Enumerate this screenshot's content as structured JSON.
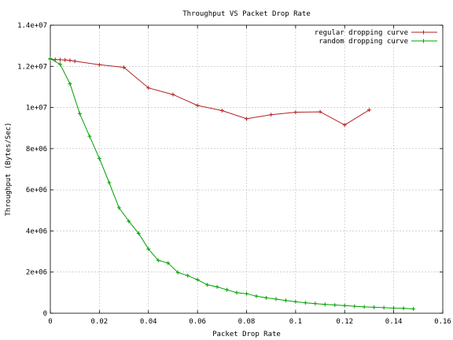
{
  "chart_data": {
    "type": "line",
    "title": "Throughput VS Packet Drop Rate",
    "xlabel": "Packet Drop Rate",
    "ylabel": "Throughput (Bytes/Sec)",
    "xlim": [
      0,
      0.16
    ],
    "ylim": [
      0,
      14000000
    ],
    "x_ticks": [
      0,
      0.02,
      0.04,
      0.06,
      0.08,
      0.1,
      0.12,
      0.14,
      0.16
    ],
    "x_tick_labels": [
      "0",
      "0.02",
      "0.04",
      "0.06",
      "0.08",
      "0.1",
      "0.12",
      "0.14",
      "0.16"
    ],
    "y_ticks": [
      0,
      2000000,
      4000000,
      6000000,
      8000000,
      10000000,
      12000000,
      14000000
    ],
    "y_tick_labels": [
      "0",
      "2e+06",
      "4e+06",
      "6e+06",
      "8e+06",
      "1e+07",
      "1.2e+07",
      "1.4e+07"
    ],
    "grid": true,
    "legend_position": "top-right",
    "series": [
      {
        "name": "regular dropping curve",
        "color": "#b22222",
        "points": [
          [
            0,
            12350000
          ],
          [
            0.002,
            12330000
          ],
          [
            0.004,
            12320000
          ],
          [
            0.006,
            12310000
          ],
          [
            0.008,
            12290000
          ],
          [
            0.01,
            12250000
          ],
          [
            0.02,
            12080000
          ],
          [
            0.03,
            11950000
          ],
          [
            0.04,
            10950000
          ],
          [
            0.05,
            10630000
          ],
          [
            0.06,
            10100000
          ],
          [
            0.07,
            9850000
          ],
          [
            0.08,
            9450000
          ],
          [
            0.09,
            9650000
          ],
          [
            0.1,
            9770000
          ],
          [
            0.11,
            9790000
          ],
          [
            0.12,
            9150000
          ],
          [
            0.13,
            9880000
          ]
        ]
      },
      {
        "name": "random dropping curve",
        "color": "#00a000",
        "points": [
          [
            0,
            12380000
          ],
          [
            0.004,
            12100000
          ],
          [
            0.008,
            11150000
          ],
          [
            0.012,
            9700000
          ],
          [
            0.016,
            8600000
          ],
          [
            0.02,
            7520000
          ],
          [
            0.024,
            6350000
          ],
          [
            0.028,
            5130000
          ],
          [
            0.032,
            4470000
          ],
          [
            0.036,
            3880000
          ],
          [
            0.04,
            3120000
          ],
          [
            0.044,
            2570000
          ],
          [
            0.048,
            2440000
          ],
          [
            0.052,
            1980000
          ],
          [
            0.056,
            1830000
          ],
          [
            0.06,
            1630000
          ],
          [
            0.064,
            1380000
          ],
          [
            0.068,
            1280000
          ],
          [
            0.072,
            1140000
          ],
          [
            0.076,
            1000000
          ],
          [
            0.08,
            950000
          ],
          [
            0.084,
            830000
          ],
          [
            0.088,
            750000
          ],
          [
            0.092,
            690000
          ],
          [
            0.096,
            620000
          ],
          [
            0.1,
            560000
          ],
          [
            0.104,
            510000
          ],
          [
            0.108,
            470000
          ],
          [
            0.112,
            430000
          ],
          [
            0.116,
            400000
          ],
          [
            0.12,
            370000
          ],
          [
            0.124,
            340000
          ],
          [
            0.128,
            310000
          ],
          [
            0.132,
            290000
          ],
          [
            0.136,
            270000
          ],
          [
            0.14,
            250000
          ],
          [
            0.144,
            240000
          ],
          [
            0.148,
            210000
          ]
        ]
      }
    ]
  }
}
